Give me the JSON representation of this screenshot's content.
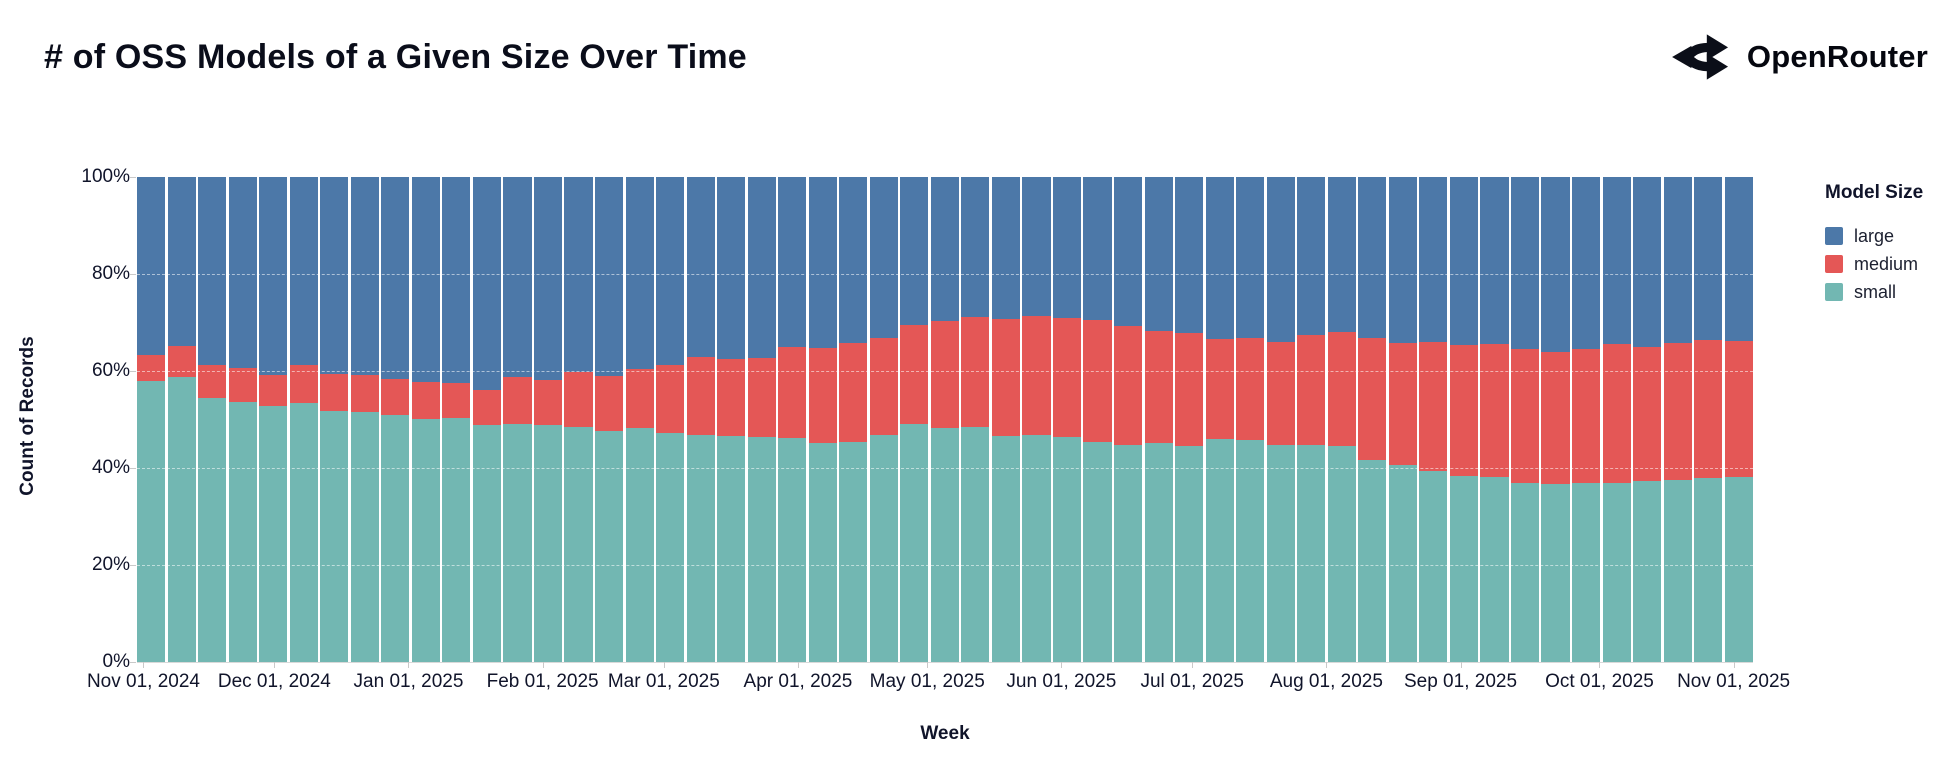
{
  "page": {
    "title": "# of OSS Models of a Given Size Over Time"
  },
  "brand": {
    "name": "OpenRouter",
    "icon": "openrouter-logo-icon"
  },
  "chart_data": {
    "type": "bar",
    "stacked": true,
    "normalized_percent": true,
    "title": "# of OSS Models of a Given Size Over Time",
    "xlabel": "Week",
    "ylabel": "Count of Records",
    "ylim": [
      0,
      100
    ],
    "grid": "on",
    "y_tick_labels": [
      "0%",
      "20%",
      "40%",
      "60%",
      "80%",
      "100%"
    ],
    "y_tick_values": [
      0,
      20,
      40,
      60,
      80,
      100
    ],
    "grid_values": [
      20,
      40,
      60,
      80
    ],
    "x_ticks": [
      {
        "label": "Nov 01, 2024",
        "pos": 0.004
      },
      {
        "label": "Dec 01, 2024",
        "pos": 0.085
      },
      {
        "label": "Jan 01, 2025",
        "pos": 0.168
      },
      {
        "label": "Feb 01, 2025",
        "pos": 0.251
      },
      {
        "label": "Mar 01, 2025",
        "pos": 0.326
      },
      {
        "label": "Apr 01, 2025",
        "pos": 0.409
      },
      {
        "label": "May 01, 2025",
        "pos": 0.489
      },
      {
        "label": "Jun 01, 2025",
        "pos": 0.572
      },
      {
        "label": "Jul 01, 2025",
        "pos": 0.653
      },
      {
        "label": "Aug 01, 2025",
        "pos": 0.736
      },
      {
        "label": "Sep 01, 2025",
        "pos": 0.819
      },
      {
        "label": "Oct 01, 2025",
        "pos": 0.905
      },
      {
        "label": "Nov 01, 2025",
        "pos": 0.988
      }
    ],
    "weeks_count": 53,
    "stack_order_top_to_bottom": [
      "large",
      "medium",
      "small"
    ],
    "legend": {
      "title": "Model Size",
      "position": "right",
      "entries": [
        {
          "label": "large",
          "color": "#4c78a8"
        },
        {
          "label": "medium",
          "color": "#e45756"
        },
        {
          "label": "small",
          "color": "#72b7b2"
        }
      ]
    },
    "series": [
      {
        "name": "large",
        "color": "#4c78a8",
        "values": [
          36.7,
          34.9,
          38.7,
          39.3,
          40.8,
          38.8,
          40.6,
          40.8,
          41.7,
          42.2,
          42.4,
          44.0,
          41.3,
          41.8,
          40.3,
          41.0,
          39.6,
          38.8,
          37.2,
          37.5,
          37.3,
          35.0,
          35.3,
          34.3,
          33.1,
          30.6,
          29.6,
          28.8,
          29.2,
          28.6,
          29.0,
          29.4,
          30.8,
          31.8,
          32.2,
          33.3,
          33.1,
          34.1,
          32.5,
          32.0,
          33.1,
          34.2,
          34.1,
          34.6,
          34.4,
          35.5,
          36.0,
          35.5,
          34.4,
          35.1,
          34.2,
          33.6,
          33.9
        ]
      },
      {
        "name": "medium",
        "color": "#e45756",
        "values": [
          5.3,
          6.4,
          6.8,
          7.0,
          6.4,
          7.9,
          7.6,
          7.6,
          7.4,
          7.8,
          7.2,
          7.1,
          9.7,
          9.4,
          11.3,
          11.3,
          12.1,
          13.9,
          15.9,
          15.9,
          16.3,
          18.8,
          19.5,
          20.4,
          20.1,
          20.3,
          22.1,
          22.7,
          24.2,
          24.6,
          24.6,
          25.2,
          24.5,
          23.1,
          23.3,
          20.7,
          21.2,
          21.1,
          22.8,
          23.4,
          25.3,
          25.1,
          26.6,
          27.1,
          27.5,
          27.5,
          27.3,
          27.6,
          28.7,
          27.5,
          28.2,
          28.5,
          28.0
        ]
      },
      {
        "name": "small",
        "color": "#72b7b2",
        "values": [
          58.0,
          58.7,
          54.5,
          53.7,
          52.8,
          53.3,
          51.8,
          51.6,
          50.9,
          50.0,
          50.4,
          48.9,
          49.0,
          48.8,
          48.4,
          47.7,
          48.3,
          47.3,
          46.9,
          46.6,
          46.4,
          46.2,
          45.2,
          45.3,
          46.8,
          49.1,
          48.3,
          48.5,
          46.6,
          46.8,
          46.4,
          45.4,
          44.7,
          45.1,
          44.5,
          46.0,
          45.7,
          44.8,
          44.7,
          44.6,
          41.6,
          40.7,
          39.3,
          38.3,
          38.1,
          37.0,
          36.7,
          36.9,
          36.9,
          37.4,
          37.6,
          37.9,
          38.1
        ]
      }
    ]
  }
}
